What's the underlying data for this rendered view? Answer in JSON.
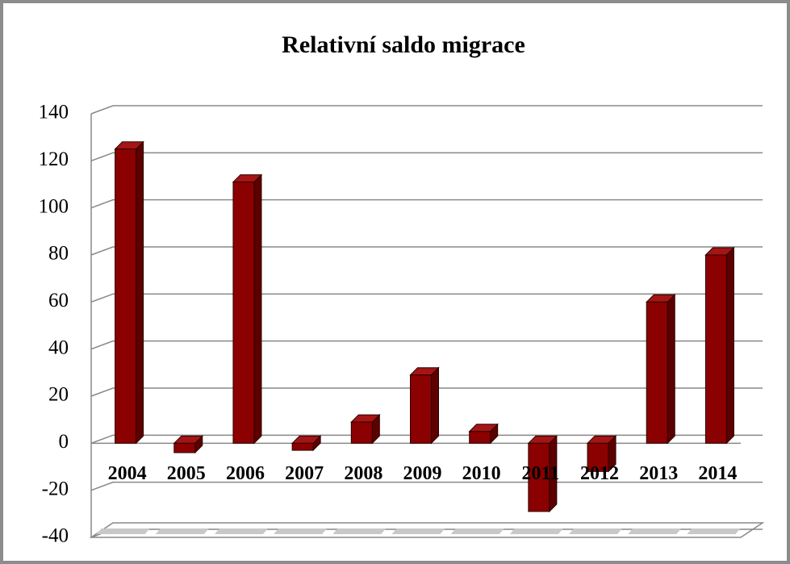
{
  "chart_data": {
    "type": "bar",
    "title": "Relativní saldo migrace",
    "categories": [
      "2004",
      "2005",
      "2006",
      "2007",
      "2008",
      "2009",
      "2010",
      "2011",
      "2012",
      "2013",
      "2014"
    ],
    "values": [
      125,
      -4,
      111,
      -3,
      9,
      29,
      5,
      -29,
      -12,
      60,
      80
    ],
    "color": "#8b0000",
    "ylim": [
      -40,
      140
    ],
    "yticks": [
      -40,
      -20,
      0,
      20,
      40,
      60,
      80,
      100,
      120,
      140
    ],
    "grid": true
  }
}
